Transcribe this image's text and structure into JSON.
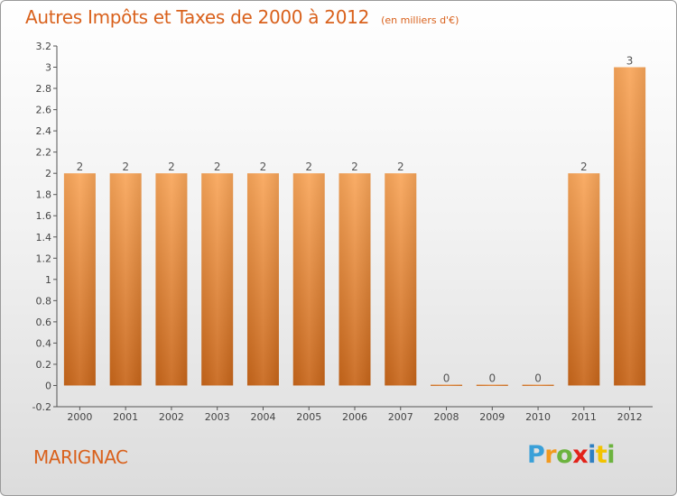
{
  "title": "Autres Impôts et Taxes de 2000 à 2012",
  "unit_note": "(en milliers d'€)",
  "place_name": "MARIGNAC",
  "brand": {
    "letters": [
      "P",
      "r",
      "o",
      "x",
      "i",
      "t",
      "i"
    ],
    "colors": [
      "#3aa0d8",
      "#f29a1f",
      "#6cb33e",
      "#e2231a",
      "#2f7fc1",
      "#f2c300",
      "#6cb33e"
    ]
  },
  "colors": {
    "accent": "#d9611c",
    "bar_top": "#f9a65a",
    "bar_bottom": "#c8661a",
    "axis": "#555555"
  },
  "chart_data": {
    "type": "bar",
    "title": "Autres Impôts et Taxes de 2000 à 2012",
    "subtitle": "(en milliers d'€)",
    "categories": [
      "2000",
      "2001",
      "2002",
      "2003",
      "2004",
      "2005",
      "2006",
      "2007",
      "2008",
      "2009",
      "2010",
      "2011",
      "2012"
    ],
    "values": [
      2,
      2,
      2,
      2,
      2,
      2,
      2,
      2,
      0,
      0,
      0,
      2,
      3
    ],
    "data_labels": [
      "2",
      "2",
      "2",
      "2",
      "2",
      "2",
      "2",
      "2",
      "0",
      "0",
      "0",
      "2",
      "3"
    ],
    "ylim": [
      -0.2,
      3.2
    ],
    "yticks": [
      -0.2,
      0,
      0.2,
      0.4,
      0.6,
      0.8,
      1,
      1.2,
      1.4,
      1.6,
      1.8,
      2,
      2.2,
      2.4,
      2.6,
      2.8,
      3,
      3.2
    ],
    "ytick_labels": [
      "-0.2",
      "0",
      "0.2",
      "0.4",
      "0.6",
      "0.8",
      "1",
      "1.2",
      "1.4",
      "1.6",
      "1.8",
      "2",
      "2.2",
      "2.4",
      "2.6",
      "2.8",
      "3",
      "3.2"
    ],
    "grid": false,
    "legend": "none"
  }
}
